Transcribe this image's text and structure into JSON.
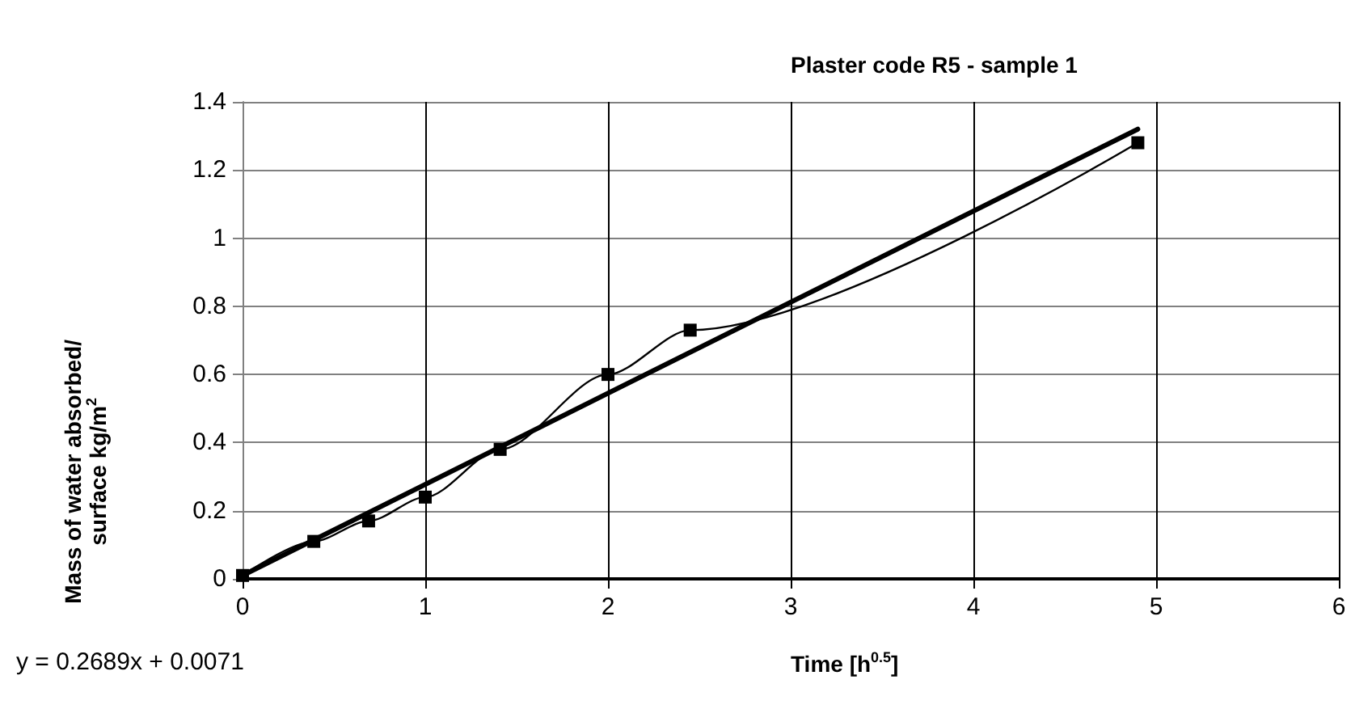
{
  "chart_data": {
    "type": "line",
    "title": "Plaster code R5 - sample 1",
    "xlabel": "Time [h$^{0.5}$]",
    "ylabel": "Mass of water absorbed/\nsurface kg/m$^{2}$",
    "series": [
      {
        "color": "#000000",
        "marker": "square",
        "x": [
          0,
          0.39,
          0.69,
          1.0,
          1.41,
          2.0,
          2.45,
          4.9
        ],
        "values": [
          0.01,
          0.11,
          0.17,
          0.24,
          0.38,
          0.6,
          0.73,
          1.28
        ]
      },
      {
        "color": "#000000",
        "marker": "none",
        "x": [
          0,
          4.9
        ],
        "values": [
          0.01,
          1.32
        ]
      }
    ],
    "xlim": [
      0,
      6
    ],
    "xticks": [
      0,
      1,
      2,
      3,
      4,
      5,
      6
    ],
    "ylim": [
      0,
      1.4
    ],
    "yticks": [
      0,
      0.2,
      0.4,
      0.6,
      0.8,
      1,
      1.2,
      1.4
    ],
    "grid": true,
    "line_style": "solid",
    "annotations": [
      "y = 0.2689x + 0.0071"
    ]
  }
}
